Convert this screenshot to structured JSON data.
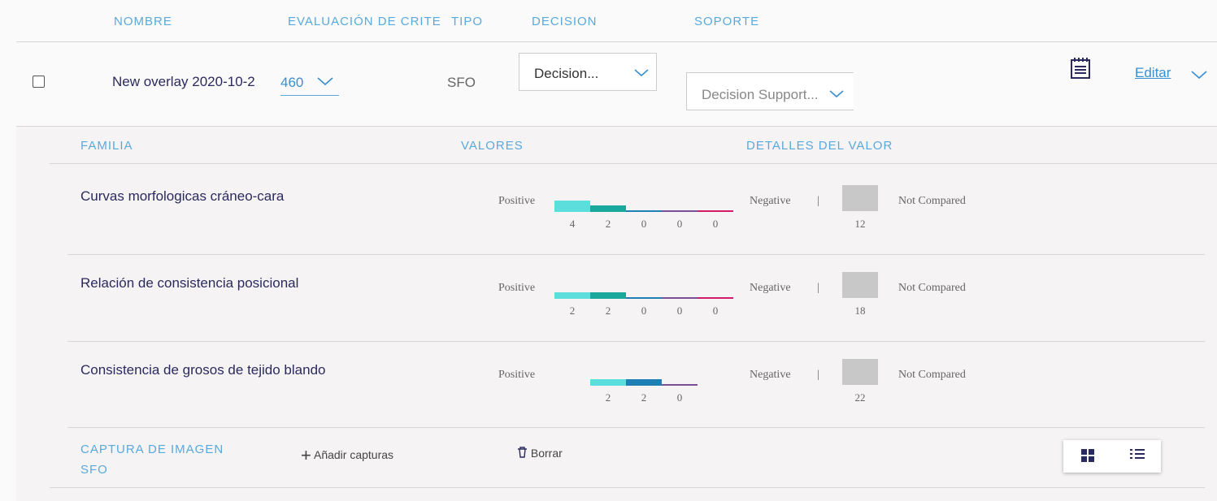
{
  "header": {
    "columns": [
      "NOMBRE",
      "EVALUACIÓN DE CRITE",
      "TIPO",
      "DECISION",
      "SOPORTE"
    ]
  },
  "row": {
    "name": "New overlay 2020-10-2",
    "score": "460",
    "type": "SFO",
    "decision": "Decision...",
    "support": "Decision Support...",
    "edit": "Editar"
  },
  "detail": {
    "columns": [
      "FAMILIA",
      "VALORES",
      "DETALLES DEL VALOR"
    ],
    "labels": {
      "positive": "Positive",
      "negative": "Negative",
      "separator": "|",
      "not_compared": "Not Compared"
    },
    "families": [
      {
        "name": "Curvas morfologicas cráneo-cara",
        "counts": [
          4,
          2,
          0,
          0,
          0
        ],
        "colors": [
          "#5cdfdc",
          "#19a89b",
          "#1d7fb3",
          "#7a4f98",
          "#d11a68"
        ],
        "not_compared": 12
      },
      {
        "name": "Relación de consistencia posicional",
        "counts": [
          2,
          2,
          0,
          0,
          0
        ],
        "colors": [
          "#5cdfdc",
          "#19a89b",
          "#1d7fb3",
          "#7a4f98",
          "#d11a68"
        ],
        "not_compared": 18
      },
      {
        "name": "Consistencia de grosos de tejido blando",
        "counts": [
          2,
          2,
          0
        ],
        "colors": [
          "#5cdfdc",
          "#1d7fb3",
          "#7a4f98"
        ],
        "not_compared": 22
      }
    ]
  },
  "capture": {
    "title": "CAPTURA DE IMAGEN SFO",
    "add": "Añadir capturas",
    "delete": "Borrar"
  }
}
